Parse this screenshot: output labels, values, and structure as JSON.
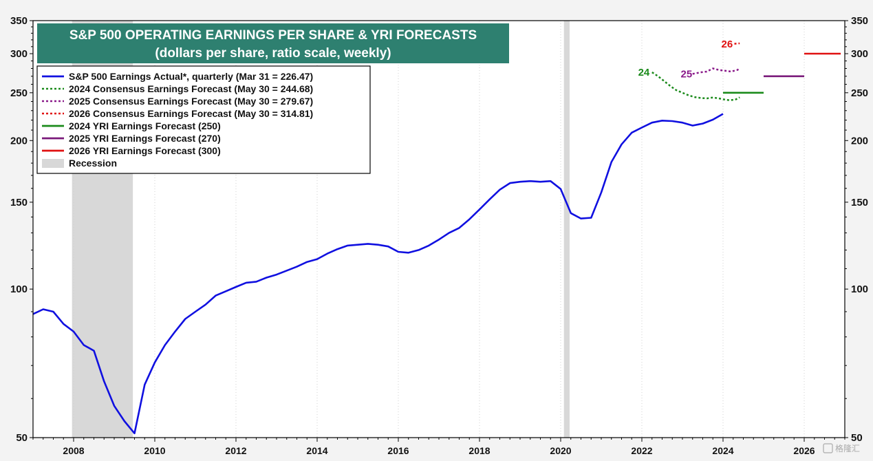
{
  "chart_data": {
    "type": "line",
    "title": "S&P 500 OPERATING EARNINGS PER SHARE & YRI FORECASTS",
    "subtitle": "(dollars per share, ratio scale, weekly)",
    "y_scale": "log",
    "ylim": [
      50,
      350
    ],
    "xlim": [
      2007.0,
      2027.0
    ],
    "y_ticks": [
      "350",
      "300",
      "250",
      "200",
      "150",
      "100",
      "50"
    ],
    "x_ticks": [
      "2008",
      "2010",
      "2012",
      "2014",
      "2016",
      "2018",
      "2020",
      "2022",
      "2024",
      "2026"
    ],
    "grid": "vertical dotted",
    "legend_position": "top-left",
    "recessions": [
      [
        2007.96,
        2009.46
      ],
      [
        2020.08,
        2020.22
      ]
    ],
    "series": [
      {
        "name": "S&P 500 Earnings Actual*, quarterly (Mar 31 = 226.47)",
        "color": "#1010e0",
        "style": "solid",
        "x": [
          2007.0,
          2007.25,
          2007.5,
          2007.75,
          2008.0,
          2008.25,
          2008.5,
          2008.75,
          2009.0,
          2009.25,
          2009.5,
          2009.75,
          2010.0,
          2010.25,
          2010.5,
          2010.75,
          2011.0,
          2011.25,
          2011.5,
          2011.75,
          2012.0,
          2012.25,
          2012.5,
          2012.75,
          2013.0,
          2013.25,
          2013.5,
          2013.75,
          2014.0,
          2014.25,
          2014.5,
          2014.75,
          2015.0,
          2015.25,
          2015.5,
          2015.75,
          2016.0,
          2016.25,
          2016.5,
          2016.75,
          2017.0,
          2017.25,
          2017.5,
          2017.75,
          2018.0,
          2018.25,
          2018.5,
          2018.75,
          2019.0,
          2019.25,
          2019.5,
          2019.75,
          2020.0,
          2020.25,
          2020.5,
          2020.75,
          2021.0,
          2021.25,
          2021.5,
          2021.75,
          2022.0,
          2022.25,
          2022.5,
          2022.75,
          2023.0,
          2023.25,
          2023.5,
          2023.75,
          2024.0
        ],
        "values": [
          89,
          91,
          90,
          85,
          82,
          77,
          75,
          65,
          58,
          54,
          51,
          64,
          71,
          77,
          82,
          87,
          90,
          93,
          97,
          99,
          101,
          103,
          103.5,
          105.5,
          107,
          109,
          111,
          113.5,
          115,
          118,
          120.5,
          122.5,
          123,
          123.5,
          123,
          122,
          119,
          118.5,
          120,
          122.5,
          126,
          130,
          133,
          138.5,
          145,
          152,
          159,
          164,
          165,
          165.5,
          165,
          165.5,
          159.5,
          142.5,
          139,
          139.5,
          157,
          181,
          196.5,
          207.5,
          212.5,
          217.5,
          219.5,
          219,
          217.5,
          214.5,
          216.5,
          220.5,
          226.5
        ]
      },
      {
        "name": "2024 Consensus Earnings Forecast (May 30 = 244.68)",
        "color": "#1a8a1a",
        "style": "dotted",
        "x": [
          2022.25,
          2022.4,
          2022.55,
          2022.7,
          2022.85,
          2023.0,
          2023.15,
          2023.3,
          2023.45,
          2023.6,
          2023.75,
          2023.9,
          2024.0,
          2024.15,
          2024.3,
          2024.41
        ],
        "values": [
          275,
          270,
          264,
          258,
          253,
          250,
          247,
          245,
          244,
          243.5,
          244.5,
          243.5,
          242.5,
          241.5,
          242,
          244.68
        ]
      },
      {
        "name": "2025 Consensus Earnings Forecast (May 30 = 279.67)",
        "color": "#8a1a8a",
        "style": "dotted",
        "x": [
          2023.25,
          2023.45,
          2023.6,
          2023.75,
          2023.9,
          2024.05,
          2024.2,
          2024.35,
          2024.41
        ],
        "values": [
          273,
          275,
          276,
          280,
          278,
          277,
          276,
          278,
          279.67
        ]
      },
      {
        "name": "2026 Consensus Earnings Forecast (May 30 = 314.81)",
        "color": "#e01010",
        "style": "dotted",
        "x": [
          2024.28,
          2024.41
        ],
        "values": [
          314.2,
          314.81
        ]
      },
      {
        "name": "2024 YRI Earnings Forecast (250)",
        "color": "#1a8a1a",
        "style": "solid",
        "x": [
          2024.0,
          2025.0
        ],
        "values": [
          250,
          250
        ]
      },
      {
        "name": "2025 YRI Earnings Forecast (270)",
        "color": "#7a1a7a",
        "style": "solid",
        "x": [
          2025.0,
          2026.0
        ],
        "values": [
          270,
          270
        ]
      },
      {
        "name": "2026 YRI Earnings Forecast (300)",
        "color": "#e01010",
        "style": "solid",
        "x": [
          2026.0,
          2026.9
        ],
        "values": [
          300,
          300
        ]
      }
    ],
    "legend": [
      {
        "label": "S&P 500 Earnings Actual*, quarterly (Mar 31 = 226.47)",
        "color": "#1010e0",
        "style": "solid"
      },
      {
        "label": "2024 Consensus Earnings Forecast (May 30 = 244.68)",
        "color": "#1a8a1a",
        "style": "dotted"
      },
      {
        "label": "2025 Consensus Earnings Forecast (May 30 = 279.67)",
        "color": "#8a1a8a",
        "style": "dotted"
      },
      {
        "label": "2026 Consensus Earnings Forecast (May 30 = 314.81)",
        "color": "#e01010",
        "style": "dotted"
      },
      {
        "label": "2024 YRI Earnings Forecast (250)",
        "color": "#1a8a1a",
        "style": "solid"
      },
      {
        "label": "2025 YRI Earnings Forecast (270)",
        "color": "#7a1a7a",
        "style": "solid"
      },
      {
        "label": "2026 YRI Earnings Forecast (300)",
        "color": "#e01010",
        "style": "solid"
      },
      {
        "label": "Recession",
        "color": "#d8d8d8",
        "style": "box"
      }
    ],
    "annotations": [
      {
        "text": "24",
        "x": 2022.05,
        "y": 275,
        "color": "#1a8a1a"
      },
      {
        "text": "25",
        "x": 2023.1,
        "y": 273,
        "color": "#8a1a8a"
      },
      {
        "text": "26",
        "x": 2024.1,
        "y": 314,
        "color": "#e01010"
      }
    ]
  },
  "colors": {
    "title_box": "#2e8070",
    "background": "#ffffff",
    "recession": "#d8d8d8"
  },
  "watermark": "格隆汇"
}
